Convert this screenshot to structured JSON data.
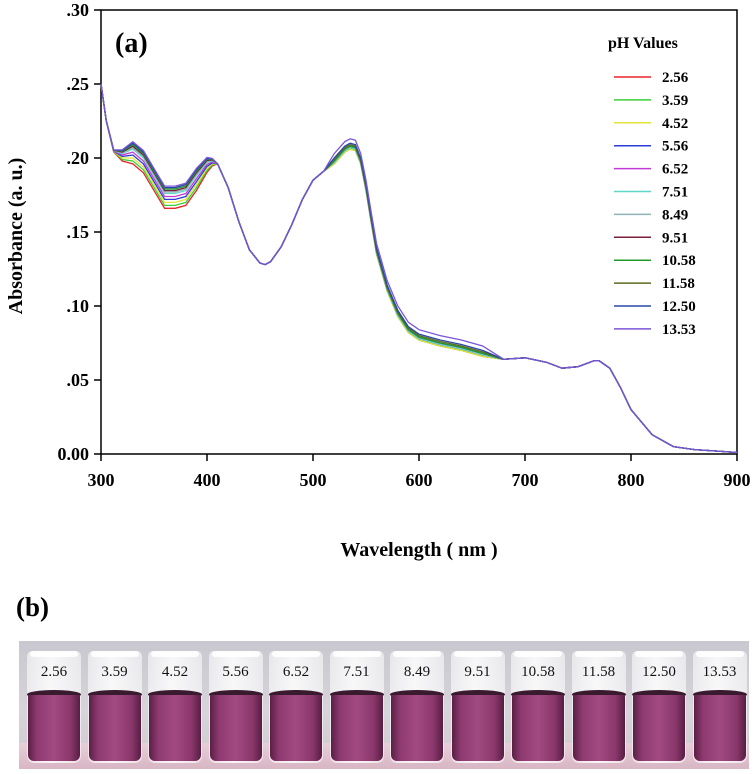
{
  "chart_data": {
    "type": "line",
    "panel_label": "(a)",
    "xlabel": "Wavelength ( nm )",
    "ylabel": "Absorbance (a. u.)",
    "xlim": [
      300,
      900
    ],
    "ylim": [
      0.0,
      0.3
    ],
    "xticks": [
      300,
      400,
      500,
      600,
      700,
      800,
      900
    ],
    "xtick_labels": [
      "300",
      "400",
      "500",
      "600",
      "700",
      "800",
      "900"
    ],
    "yticks": [
      0.0,
      0.05,
      0.1,
      0.15,
      0.2,
      0.25,
      0.3
    ],
    "ytick_labels": [
      "0.00",
      ".05",
      ".10",
      ".15",
      ".20",
      ".25",
      ".30"
    ],
    "legend_title": "pH Values",
    "legend_position": "top-right",
    "x": [
      300,
      305,
      312,
      320,
      330,
      340,
      350,
      360,
      370,
      380,
      390,
      400,
      405,
      410,
      420,
      430,
      440,
      450,
      455,
      460,
      470,
      480,
      490,
      500,
      510,
      520,
      530,
      535,
      540,
      545,
      550,
      555,
      560,
      570,
      580,
      590,
      600,
      620,
      640,
      660,
      680,
      700,
      720,
      735,
      750,
      765,
      770,
      780,
      790,
      800,
      820,
      840,
      860,
      880,
      900
    ],
    "base": [
      0.25,
      0.225,
      0.205,
      0.203,
      0.206,
      0.2,
      0.188,
      0.176,
      0.176,
      0.178,
      0.188,
      0.197,
      0.198,
      0.196,
      0.18,
      0.157,
      0.138,
      0.129,
      0.128,
      0.13,
      0.14,
      0.155,
      0.172,
      0.185,
      0.191,
      0.196,
      0.204,
      0.206,
      0.205,
      0.196,
      0.178,
      0.156,
      0.135,
      0.11,
      0.093,
      0.082,
      0.077,
      0.073,
      0.07,
      0.066,
      0.064,
      0.065,
      0.062,
      0.058,
      0.059,
      0.063,
      0.063,
      0.058,
      0.045,
      0.03,
      0.013,
      0.005,
      0.003,
      0.002,
      0.001
    ],
    "series": [
      {
        "name": "2.56",
        "color": "#e8242b",
        "valley_offset": -0.01,
        "peak_offset": 0.0
      },
      {
        "name": "3.59",
        "color": "#3ad03a",
        "valley_offset": -0.008,
        "peak_offset": 0.0
      },
      {
        "name": "4.52",
        "color": "#e3e337",
        "valley_offset": -0.006,
        "peak_offset": 0.0
      },
      {
        "name": "5.56",
        "color": "#2b3dd6",
        "valley_offset": -0.004,
        "peak_offset": 0.001
      },
      {
        "name": "6.52",
        "color": "#c23ad6",
        "valley_offset": -0.002,
        "peak_offset": 0.001
      },
      {
        "name": "7.51",
        "color": "#5fd8c8",
        "valley_offset": 0.0,
        "peak_offset": 0.001
      },
      {
        "name": "8.49",
        "color": "#8fb2b8",
        "valley_offset": 0.001,
        "peak_offset": 0.002
      },
      {
        "name": "9.51",
        "color": "#7a1f3a",
        "valley_offset": 0.002,
        "peak_offset": 0.002
      },
      {
        "name": "10.58",
        "color": "#1f9a2d",
        "valley_offset": 0.003,
        "peak_offset": 0.002
      },
      {
        "name": "11.58",
        "color": "#5a6a1e",
        "valley_offset": 0.004,
        "peak_offset": 0.003
      },
      {
        "name": "12.50",
        "color": "#2848a8",
        "valley_offset": 0.004,
        "peak_offset": 0.004
      },
      {
        "name": "13.53",
        "color": "#7a55d8",
        "valley_offset": 0.005,
        "peak_offset": 0.007
      }
    ]
  },
  "panel_b": {
    "label": "(b)",
    "vials": [
      "2.56",
      "3.59",
      "4.52",
      "5.56",
      "6.52",
      "7.51",
      "8.49",
      "9.51",
      "10.58",
      "11.58",
      "12.50",
      "13.53"
    ]
  }
}
